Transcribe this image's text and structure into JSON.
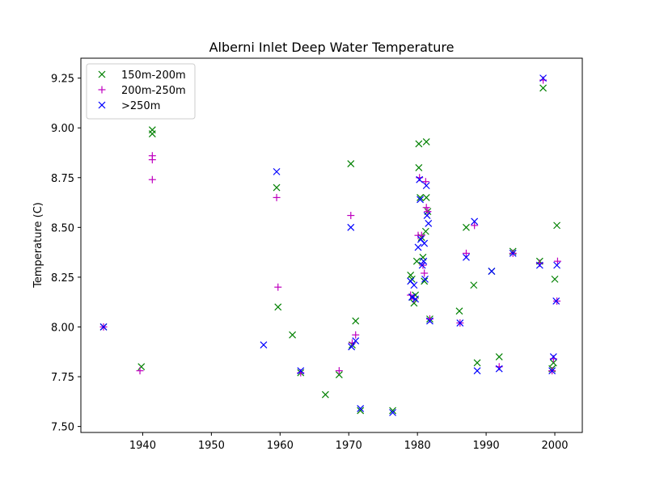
{
  "chart_data": {
    "type": "scatter",
    "title": "Alberni Inlet Deep Water Temperature",
    "xlabel": "",
    "ylabel": "Temperature (C)",
    "xlim": [
      1931,
      2004
    ],
    "ylim": [
      7.47,
      9.35
    ],
    "xticks": [
      1940,
      1950,
      1960,
      1970,
      1980,
      1990,
      2000
    ],
    "yticks": [
      7.5,
      7.75,
      8.0,
      8.25,
      8.5,
      8.75,
      9.0,
      9.25
    ],
    "xtick_labels": [
      "1940",
      "1950",
      "1960",
      "1970",
      "1980",
      "1990",
      "2000"
    ],
    "ytick_labels": [
      "7.50",
      "7.75",
      "8.00",
      "8.25",
      "8.50",
      "8.75",
      "9.00",
      "9.25"
    ],
    "grid": false,
    "legend_position": "top-left",
    "series": [
      {
        "name": "150m-200m",
        "marker": "x",
        "color": "#008000",
        "points": [
          [
            1934.3,
            8.0
          ],
          [
            1939.8,
            7.8
          ],
          [
            1941.4,
            8.99
          ],
          [
            1941.4,
            8.97
          ],
          [
            1959.5,
            8.7
          ],
          [
            1959.7,
            8.1
          ],
          [
            1961.8,
            7.96
          ],
          [
            1963.0,
            7.77
          ],
          [
            1966.6,
            7.66
          ],
          [
            1968.6,
            7.76
          ],
          [
            1970.3,
            8.82
          ],
          [
            1970.5,
            7.91
          ],
          [
            1971.0,
            8.03
          ],
          [
            1971.7,
            7.58
          ],
          [
            1976.4,
            7.58
          ],
          [
            1979.0,
            8.26
          ],
          [
            1979.2,
            8.24
          ],
          [
            1979.3,
            8.15
          ],
          [
            1979.5,
            8.12
          ],
          [
            1979.7,
            8.16
          ],
          [
            1979.9,
            8.33
          ],
          [
            1980.2,
            8.92
          ],
          [
            1980.2,
            8.8
          ],
          [
            1980.4,
            8.65
          ],
          [
            1980.6,
            8.45
          ],
          [
            1980.8,
            8.35
          ],
          [
            1981.0,
            8.23
          ],
          [
            1981.2,
            8.48
          ],
          [
            1981.3,
            8.93
          ],
          [
            1981.5,
            8.58
          ],
          [
            1981.3,
            8.65
          ],
          [
            1981.8,
            8.04
          ],
          [
            1986.1,
            8.08
          ],
          [
            1987.1,
            8.5
          ],
          [
            1988.2,
            8.21
          ],
          [
            1988.7,
            7.82
          ],
          [
            1990.8,
            8.28
          ],
          [
            1991.9,
            7.85
          ],
          [
            1993.9,
            8.38
          ],
          [
            1997.8,
            8.33
          ],
          [
            1998.3,
            9.2
          ],
          [
            1999.6,
            7.79
          ],
          [
            1999.8,
            7.82
          ],
          [
            2000.0,
            8.24
          ],
          [
            2000.3,
            8.51
          ]
        ]
      },
      {
        "name": "200m-250m",
        "marker": "+",
        "color": "#bf00bf",
        "points": [
          [
            1934.3,
            8.0
          ],
          [
            1939.6,
            7.78
          ],
          [
            1941.4,
            8.86
          ],
          [
            1941.4,
            8.84
          ],
          [
            1941.4,
            8.74
          ],
          [
            1959.5,
            8.65
          ],
          [
            1959.7,
            8.2
          ],
          [
            1963.0,
            7.77
          ],
          [
            1968.6,
            7.78
          ],
          [
            1970.3,
            8.56
          ],
          [
            1970.5,
            7.92
          ],
          [
            1971.0,
            7.96
          ],
          [
            1979.0,
            8.16
          ],
          [
            1979.5,
            8.14
          ],
          [
            1980.1,
            8.46
          ],
          [
            1980.3,
            8.75
          ],
          [
            1980.6,
            8.46
          ],
          [
            1980.8,
            8.31
          ],
          [
            1981.0,
            8.27
          ],
          [
            1981.2,
            8.73
          ],
          [
            1981.3,
            8.6
          ],
          [
            1981.5,
            8.58
          ],
          [
            1981.8,
            8.04
          ],
          [
            1986.2,
            8.02
          ],
          [
            1987.1,
            8.37
          ],
          [
            1988.3,
            8.51
          ],
          [
            1991.9,
            7.8
          ],
          [
            1993.9,
            8.37
          ],
          [
            1997.8,
            8.32
          ],
          [
            1998.3,
            9.24
          ],
          [
            1999.6,
            7.78
          ],
          [
            1999.8,
            7.84
          ],
          [
            2000.3,
            8.13
          ],
          [
            2000.4,
            8.33
          ]
        ]
      },
      {
        "name": ">250m",
        "marker": "x",
        "color": "#0000ff",
        "points": [
          [
            1934.3,
            8.0
          ],
          [
            1957.6,
            7.91
          ],
          [
            1959.5,
            8.78
          ],
          [
            1963.0,
            7.78
          ],
          [
            1970.3,
            8.5
          ],
          [
            1970.4,
            7.9
          ],
          [
            1971.0,
            7.93
          ],
          [
            1971.7,
            7.59
          ],
          [
            1976.4,
            7.57
          ],
          [
            1979.0,
            8.23
          ],
          [
            1979.2,
            8.15
          ],
          [
            1979.5,
            8.21
          ],
          [
            1979.7,
            8.14
          ],
          [
            1980.1,
            8.4
          ],
          [
            1980.3,
            8.74
          ],
          [
            1980.4,
            8.64
          ],
          [
            1980.5,
            8.44
          ],
          [
            1980.7,
            8.31
          ],
          [
            1980.9,
            8.33
          ],
          [
            1981.0,
            8.42
          ],
          [
            1981.1,
            8.24
          ],
          [
            1981.3,
            8.71
          ],
          [
            1981.4,
            8.56
          ],
          [
            1981.6,
            8.52
          ],
          [
            1981.8,
            8.03
          ],
          [
            1986.2,
            8.02
          ],
          [
            1987.1,
            8.35
          ],
          [
            1988.3,
            8.53
          ],
          [
            1988.7,
            7.78
          ],
          [
            1990.8,
            8.28
          ],
          [
            1991.9,
            7.79
          ],
          [
            1993.9,
            8.37
          ],
          [
            1997.8,
            8.31
          ],
          [
            1998.3,
            9.25
          ],
          [
            1999.6,
            7.78
          ],
          [
            1999.8,
            7.85
          ],
          [
            2000.2,
            8.13
          ],
          [
            2000.3,
            8.31
          ]
        ]
      }
    ]
  }
}
